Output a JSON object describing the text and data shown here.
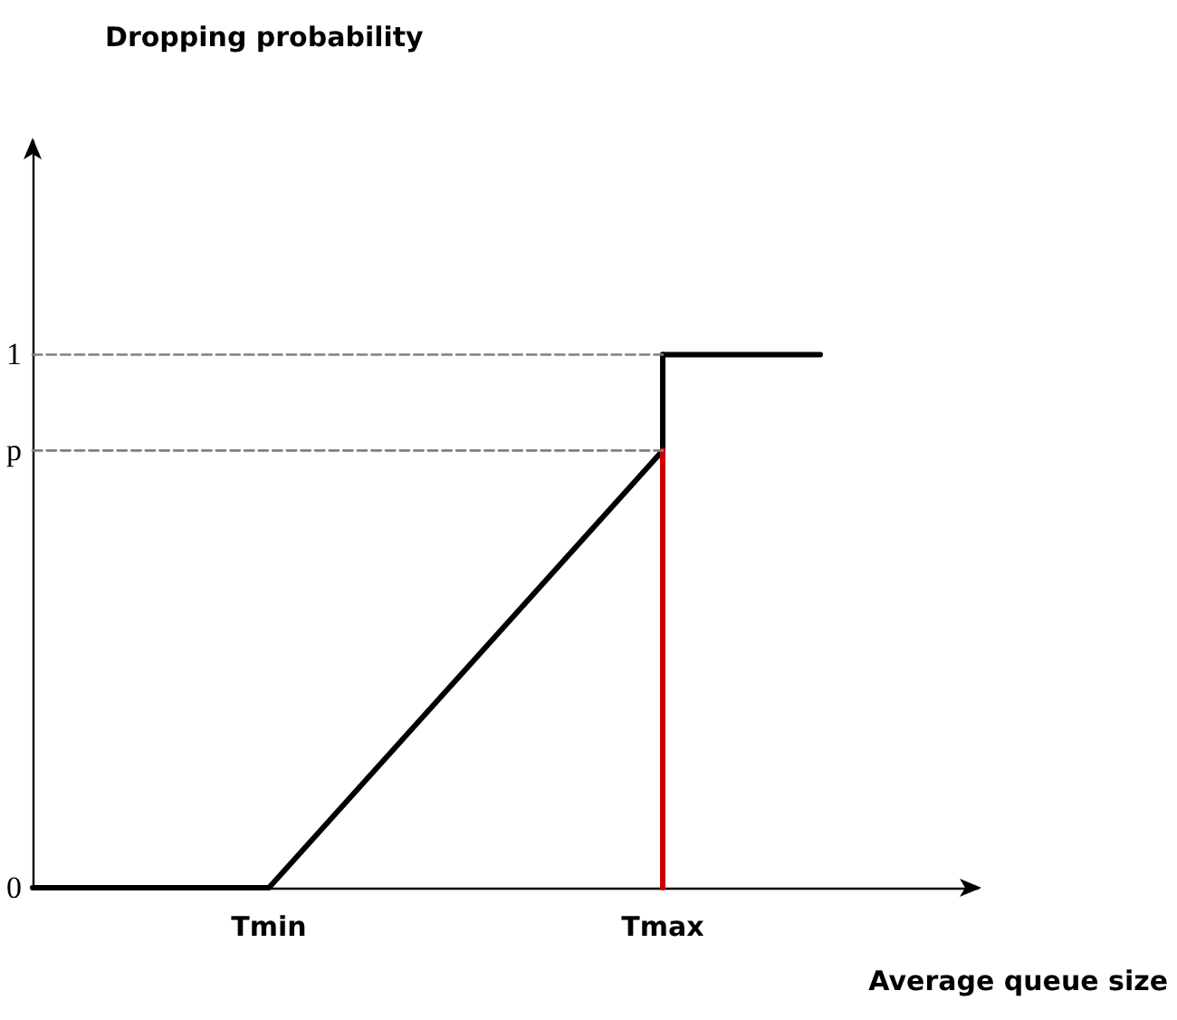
{
  "chart_data": {
    "type": "line",
    "xlabel": "Average queue size",
    "ylabel": "Dropping probability",
    "categories": [
      null,
      null,
      null,
      "Tmin",
      null,
      null,
      null,
      null,
      "Tmax",
      null,
      null,
      null,
      null
    ],
    "ylim": [
      0,
      1.4
    ],
    "yticks": [
      {
        "value": 0,
        "label": "0"
      },
      {
        "value": 0.82,
        "label": "p"
      },
      {
        "value": 1,
        "label": "1"
      }
    ],
    "marker": "none",
    "series": [
      {
        "color": "#000000",
        "values": [
          0,
          null,
          null,
          0,
          null,
          null,
          null,
          null,
          0.82,
          null,
          null,
          null,
          null
        ]
      },
      {
        "color": "#000000",
        "x": [
          "Tmax",
          "Tmax"
        ],
        "values": [
          0.82,
          1
        ]
      },
      {
        "color": "#000000",
        "values": [
          null,
          null,
          null,
          null,
          null,
          null,
          null,
          null,
          1,
          null,
          1,
          null,
          null
        ]
      },
      {
        "color": "#cc0000",
        "x": [
          "Tmax",
          "Tmax"
        ],
        "values": [
          0,
          0.82
        ]
      },
      {
        "color": "#808080",
        "line_style": "dashed",
        "values": [
          1,
          null,
          null,
          null,
          null,
          null,
          null,
          null,
          1,
          null,
          null,
          null,
          null
        ]
      },
      {
        "color": "#808080",
        "line_style": "dashed",
        "values": [
          0.82,
          null,
          null,
          null,
          null,
          null,
          null,
          null,
          0.82,
          null,
          null,
          null,
          null
        ]
      }
    ]
  }
}
